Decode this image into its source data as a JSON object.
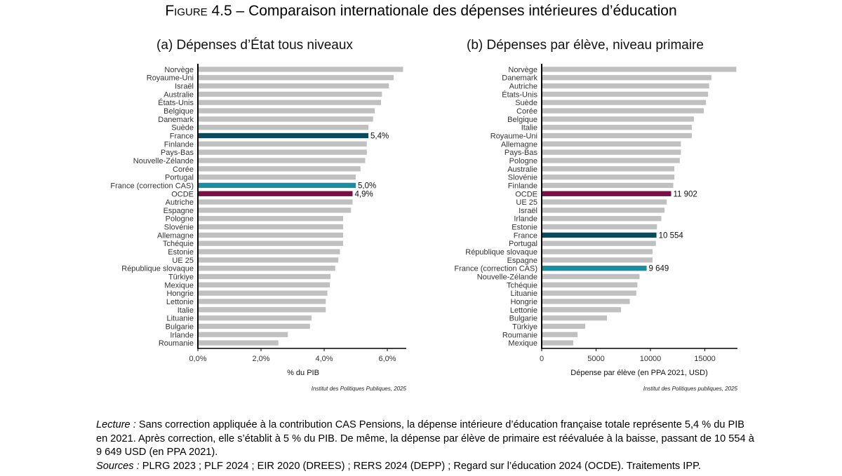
{
  "figure": {
    "label": "Figure 4.5",
    "separator": " – ",
    "title": "Comparaison internationale des dépenses intérieures d’éducation"
  },
  "colors": {
    "default": "#c0c0c0",
    "france": "#0b4a5a",
    "france_cas": "#1a8ea1",
    "ocde": "#7a0e45"
  },
  "chart_data": [
    {
      "type": "bar",
      "orientation": "horizontal",
      "title": "(a) Dépenses d’État tous niveaux",
      "xlabel": "% du PIB",
      "ylabel": "",
      "xlim": [
        0,
        6.6
      ],
      "xticks": [
        0,
        2,
        4,
        6
      ],
      "xtick_labels": [
        "0,0%",
        "2,0%",
        "4,0%",
        "6,0%"
      ],
      "credit": "Institut des Politiques Publiques, 2025",
      "categories": [
        "Norvège",
        "Royaume-Uni",
        "Israël",
        "Australie",
        "États-Unis",
        "Belgique",
        "Danemark",
        "Suède",
        "France",
        "Finlande",
        "Pays-Bas",
        "Nouvelle-Zélande",
        "Corée",
        "Portugal",
        "France (correction CAS)",
        "OCDE",
        "Autriche",
        "Espagne",
        "Pologne",
        "Slovénie",
        "Allemagne",
        "Tchéquie",
        "Estonie",
        "UE 25",
        "République slovaque",
        "Türkiye",
        "Mexique",
        "Hongrie",
        "Lettonie",
        "Italie",
        "Lituanie",
        "Bulgarie",
        "Irlande",
        "Roumanie"
      ],
      "values": [
        6.5,
        6.2,
        6.05,
        5.83,
        5.8,
        5.6,
        5.55,
        5.4,
        5.4,
        5.35,
        5.35,
        5.3,
        5.15,
        5.0,
        5.0,
        4.9,
        4.9,
        4.85,
        4.6,
        4.6,
        4.6,
        4.6,
        4.5,
        4.45,
        4.35,
        4.2,
        4.18,
        4.1,
        4.05,
        4.05,
        3.6,
        3.55,
        2.85,
        2.55
      ],
      "highlights": {
        "France": "france",
        "France (correction CAS)": "france_cas",
        "OCDE": "ocde"
      },
      "data_labels": {
        "France": "5,4%",
        "France (correction CAS)": "5,0%",
        "OCDE": "4,9%"
      }
    },
    {
      "type": "bar",
      "orientation": "horizontal",
      "title": "(b) Dépenses par élève, niveau primaire",
      "xlabel": "Dépense par élève (en PPA 2021, USD)",
      "ylabel": "",
      "xlim": [
        0,
        18000
      ],
      "xticks": [
        0,
        5000,
        10000,
        15000
      ],
      "xtick_labels": [
        "0",
        "5000",
        "10000",
        "15000"
      ],
      "credit": "Institut des Politiques publiques, 2025",
      "categories": [
        "Norvège",
        "Danemark",
        "Autriche",
        "États-Unis",
        "Suède",
        "Corée",
        "Belgique",
        "Italie",
        "Royaume-Uni",
        "Allemagne",
        "Pays-Bas",
        "Pologne",
        "Australie",
        "Slovénie",
        "Finlande",
        "OCDE",
        "UE 25",
        "Israël",
        "Irlande",
        "Estonie",
        "France",
        "Portugal",
        "République slovaque",
        "Espagne",
        "France (correction CAS)",
        "Nouvelle-Zélande",
        "Tchéquie",
        "Lituanie",
        "Hongrie",
        "Lettonie",
        "Bulgarie",
        "Türkiye",
        "Roumanie",
        "Mexique"
      ],
      "values": [
        17900,
        15600,
        15400,
        15300,
        15100,
        14900,
        14000,
        13800,
        13800,
        12800,
        12800,
        12700,
        12200,
        12200,
        12100,
        11902,
        11500,
        11300,
        11000,
        10600,
        10554,
        10500,
        10200,
        10200,
        9649,
        9000,
        8800,
        8700,
        8100,
        7300,
        6000,
        4000,
        3300,
        2900
      ],
      "highlights": {
        "OCDE": "ocde",
        "France": "france",
        "France (correction CAS)": "france_cas"
      },
      "data_labels": {
        "OCDE": "11 902",
        "France": "10 554",
        "France (correction CAS)": "9 649"
      }
    }
  ],
  "notes": {
    "lecture_label": "Lecture :",
    "lecture_text": " Sans correction appliquée à la contribution CAS Pensions, la dépense intérieure d’éducation française totale représente 5,4 % du PIB en 2021. Après correction, elle s’établit à 5 % du PIB. De même, la dépense par élève de primaire est réévaluée à la baisse, passant de 10 554 à 9 649 USD (en PPA 2021).",
    "sources_label": "Sources :",
    "sources_text": " PLRG 2023 ; PLF 2024 ; EIR 2020 (DREES) ; RERS 2024 (DEPP) ; Regard sur l’éducation 2024 (OCDE). Traitements IPP."
  }
}
